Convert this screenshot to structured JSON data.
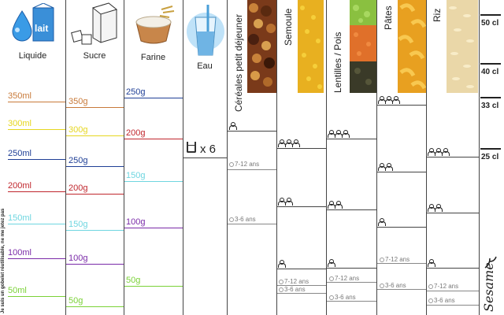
{
  "columns": {
    "liquide": {
      "label": "Liquide",
      "marks": [
        {
          "text": "350ml",
          "color": "#c87a3a"
        },
        {
          "text": "300ml",
          "color": "#e6d620"
        },
        {
          "text": "250ml",
          "color": "#1f3f96"
        },
        {
          "text": "200ml",
          "color": "#c0262d"
        },
        {
          "text": "150ml",
          "color": "#6fd6e0"
        },
        {
          "text": "100ml",
          "color": "#7a2aa8"
        },
        {
          "text": "50ml",
          "color": "#7bd238"
        }
      ]
    },
    "sucre": {
      "label": "Sucre",
      "marks": [
        {
          "text": "350g",
          "color": "#c87a3a"
        },
        {
          "text": "300g",
          "color": "#e6d620"
        },
        {
          "text": "250g",
          "color": "#1f3f96"
        },
        {
          "text": "200g",
          "color": "#c0262d"
        },
        {
          "text": "150g",
          "color": "#6fd6e0"
        },
        {
          "text": "100g",
          "color": "#7a2aa8"
        },
        {
          "text": "50g",
          "color": "#7bd238"
        }
      ]
    },
    "farine": {
      "label": "Farine",
      "marks": [
        {
          "text": "250g",
          "color": "#1f3f96"
        },
        {
          "text": "200g",
          "color": "#c0262d"
        },
        {
          "text": "150g",
          "color": "#6fd6e0"
        },
        {
          "text": "100g",
          "color": "#7a2aa8"
        },
        {
          "text": "50g",
          "color": "#7bd238"
        }
      ]
    },
    "eau": {
      "label": "Eau",
      "glass_text": "x 6"
    },
    "cereales": {
      "label": "Céréales petit déjeuner"
    },
    "semoule": {
      "label": "Semoule"
    },
    "lentilles": {
      "label": "Lentilles / Pois"
    },
    "pates": {
      "label": "Pâtes"
    },
    "riz": {
      "label": "Riz"
    }
  },
  "age_labels": {
    "older": "7-12 ans",
    "younger": "3-6 ans"
  },
  "cl_marks": [
    "50 cl",
    "40 cl",
    "33 cl",
    "25 cl"
  ],
  "side_text": "Je suis un gobelet réutilisable, ne me jetez pas",
  "brand": "Sesame"
}
